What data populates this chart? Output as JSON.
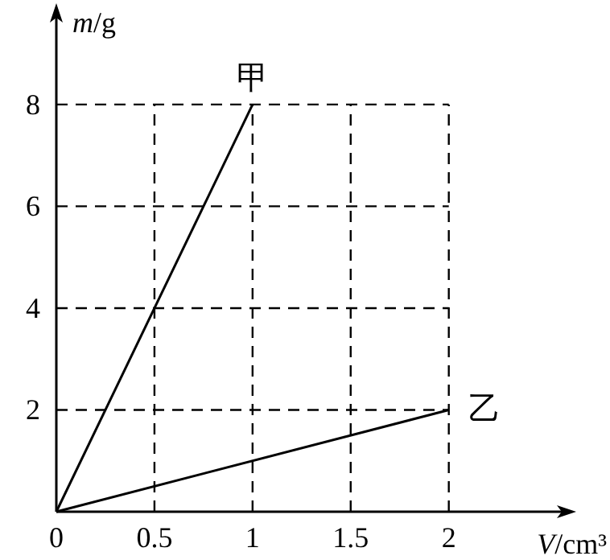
{
  "chart_data": {
    "type": "line",
    "xlabel": "V/cm³",
    "ylabel": "m/g",
    "xlim": [
      0,
      2.6
    ],
    "ylim": [
      0,
      9.8
    ],
    "xticks": [
      0,
      0.5,
      1,
      1.5,
      2
    ],
    "yticks": [
      2,
      4,
      6,
      8
    ],
    "grid": true,
    "legend": false,
    "marker": "none",
    "line_style": "solid",
    "series": [
      {
        "name": "甲",
        "color": "#000000",
        "x": [
          0,
          1
        ],
        "values": [
          0,
          8
        ]
      },
      {
        "name": "乙",
        "color": "#000000",
        "x": [
          0,
          2
        ],
        "values": [
          0,
          2
        ]
      }
    ]
  }
}
